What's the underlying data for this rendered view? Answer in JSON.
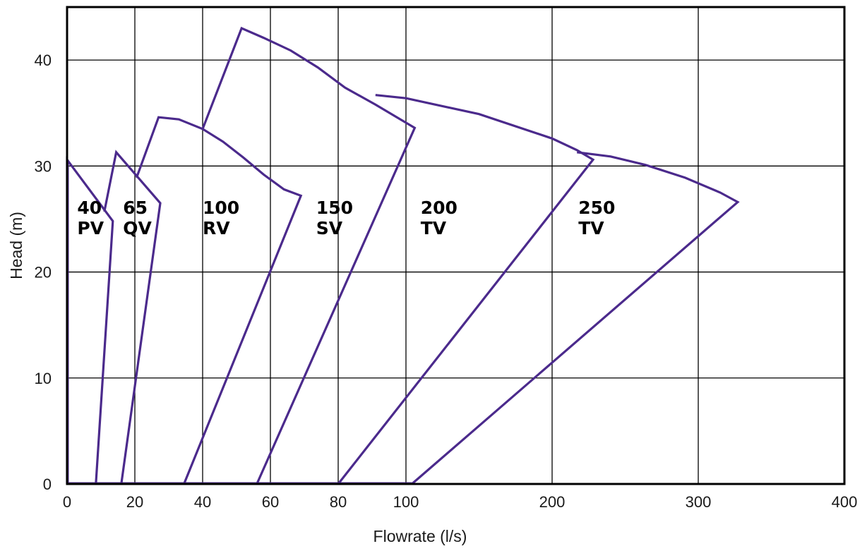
{
  "chart_data": {
    "type": "line",
    "title": "",
    "xlabel": "Flowrate (l/s)",
    "ylabel": "Head (m)",
    "xscale": "piecewise: linear 0–100 l/s (expanded), linear 100–400 l/s (compressed)",
    "xlim": [
      0,
      400
    ],
    "ylim": [
      0,
      45
    ],
    "x_ticks": [
      0,
      20,
      40,
      60,
      80,
      100,
      200,
      300,
      400
    ],
    "x_tick_labels": [
      "0",
      "20",
      "40",
      "60",
      "80",
      "100",
      "200",
      "300",
      "400"
    ],
    "y_ticks": [
      0,
      10,
      20,
      30,
      40
    ],
    "y_tick_labels": [
      "0",
      "10",
      "20",
      "30",
      "40"
    ],
    "grid": true,
    "legend": "none",
    "line_color": "#4b2a8c",
    "series": [
      {
        "name": "40 PV",
        "label_lines": [
          "40",
          "PV"
        ],
        "points": [
          [
            0,
            0
          ],
          [
            0,
            30.6
          ],
          [
            13.5,
            24.8
          ],
          [
            8.5,
            0
          ]
        ],
        "label_anchor": [
          3,
          25.5
        ]
      },
      {
        "name": "65 QV",
        "label_lines": [
          "65",
          "QV"
        ],
        "points": [
          [
            11,
            25.7
          ],
          [
            14.5,
            31.3
          ],
          [
            27.5,
            26.5
          ],
          [
            16,
            0
          ]
        ],
        "label_anchor": [
          16.5,
          25.5
        ]
      },
      {
        "name": "100 RV",
        "label_lines": [
          "100",
          "RV"
        ],
        "points": [
          [
            20.5,
            28.9
          ],
          [
            27,
            34.6
          ],
          [
            33,
            34.4
          ],
          [
            40,
            33.5
          ],
          [
            46,
            32.3
          ],
          [
            52,
            30.8
          ],
          [
            58,
            29.2
          ],
          [
            64,
            27.8
          ],
          [
            69,
            27.2
          ],
          [
            34.5,
            0
          ]
        ],
        "label_anchor": [
          40,
          25.5
        ]
      },
      {
        "name": "150 SV",
        "label_lines": [
          "150",
          "SV"
        ],
        "points": [
          [
            40,
            33.5
          ],
          [
            51.5,
            43.0
          ],
          [
            58,
            42.1
          ],
          [
            66,
            40.9
          ],
          [
            74,
            39.3
          ],
          [
            82,
            37.4
          ],
          [
            91,
            35.8
          ],
          [
            106,
            33.6
          ],
          [
            56,
            0
          ]
        ],
        "label_anchor": [
          73.5,
          25.5
        ]
      },
      {
        "name": "200 TV",
        "label_lines": [
          "200",
          "TV"
        ],
        "points": [
          [
            91,
            36.7
          ],
          [
            100,
            36.4
          ],
          [
            150,
            34.9
          ],
          [
            200,
            32.6
          ],
          [
            217,
            31.5
          ],
          [
            228,
            30.6
          ],
          [
            80,
            0
          ]
        ],
        "label_anchor": [
          110,
          25.5
        ]
      },
      {
        "name": "250 TV",
        "label_lines": [
          "250",
          "TV"
        ],
        "points": [
          [
            217,
            31.3
          ],
          [
            240,
            30.9
          ],
          [
            264,
            30.1
          ],
          [
            291,
            28.9
          ],
          [
            315,
            27.5
          ],
          [
            327,
            26.6
          ],
          [
            104,
            0
          ]
        ],
        "label_anchor": [
          218,
          25.5
        ]
      }
    ]
  }
}
